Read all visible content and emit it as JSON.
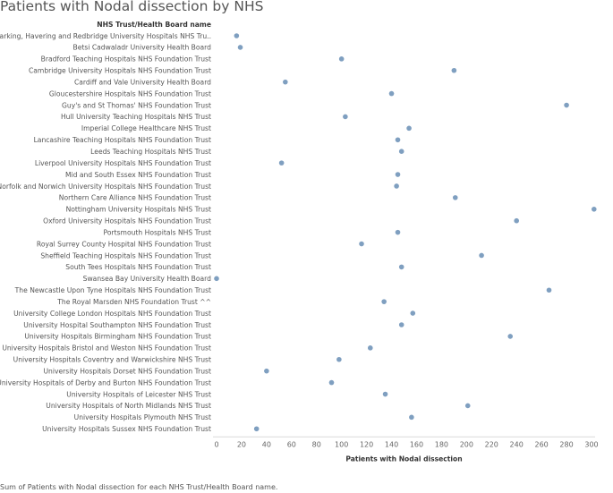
{
  "title": "Patients with Nodal dissection by NHS",
  "footnote": "Sum of Patients with Nodal dissection for each NHS Trust/Health Board name.",
  "colors": {
    "point": "#7f9fc0",
    "axis": "#d9d9d9"
  },
  "chart_data": {
    "type": "scatter",
    "row_header": "NHS Trust/Health Board name",
    "xlabel": "Patients with Nodal dissection",
    "xlim": [
      0,
      300
    ],
    "xticks": [
      0,
      20,
      40,
      60,
      80,
      100,
      120,
      140,
      160,
      180,
      200,
      220,
      240,
      260,
      280,
      300
    ],
    "grid": false,
    "categories": [
      "Barking, Havering and Redbridge University Hospitals NHS Tru..",
      "Betsi Cadwaladr University Health Board",
      "Bradford Teaching Hospitals NHS Foundation Trust",
      "Cambridge University Hospitals NHS Foundation Trust",
      "Cardiff and Vale University Health Board",
      "Gloucestershire Hospitals NHS Foundation Trust",
      "Guy's and St Thomas' NHS Foundation Trust",
      "Hull University Teaching Hospitals NHS Trust",
      "Imperial College Healthcare NHS Trust",
      "Lancashire Teaching Hospitals NHS Foundation Trust",
      "Leeds Teaching Hospitals NHS Trust",
      "Liverpool University Hospitals NHS Foundation Trust",
      "Mid and South Essex NHS Foundation Trust",
      "Norfolk and Norwich University Hospitals NHS Foundation Trust",
      "Northern Care Alliance NHS Foundation Trust",
      "Nottingham University Hospitals NHS Trust",
      "Oxford University Hospitals NHS Foundation Trust",
      "Portsmouth Hospitals NHS Trust",
      "Royal Surrey County Hospital NHS Foundation Trust",
      "Sheffield Teaching Hospitals NHS Foundation Trust",
      "South Tees Hospitals NHS Foundation Trust",
      "Swansea Bay University Health Board",
      "The Newcastle Upon Tyne Hospitals NHS Foundation Trust",
      "The Royal Marsden NHS Foundation Trust ^^",
      "University College London Hospitals NHS Foundation Trust",
      "University Hospital Southampton NHS Foundation Trust",
      "University Hospitals Birmingham NHS Foundation Trust",
      "University Hospitals Bristol and Weston NHS Foundation Trust",
      "University Hospitals Coventry and Warwickshire NHS Trust",
      "University Hospitals Dorset NHS Foundation Trust",
      "University Hospitals of Derby and Burton NHS Foundation Trust",
      "University Hospitals of Leicester NHS Trust",
      "University Hospitals of North Midlands NHS Trust",
      "University Hospitals Plymouth NHS Trust",
      "University Hospitals Sussex NHS Foundation Trust"
    ],
    "values": [
      16,
      19,
      100,
      190,
      55,
      140,
      280,
      103,
      154,
      145,
      148,
      52,
      145,
      144,
      191,
      302,
      240,
      145,
      116,
      212,
      148,
      0,
      266,
      134,
      157,
      148,
      235,
      123,
      98,
      40,
      92,
      135,
      201,
      156,
      32
    ]
  }
}
